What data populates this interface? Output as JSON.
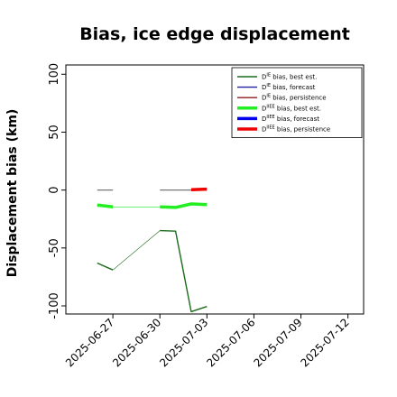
{
  "chart_data": {
    "type": "line",
    "title": "Bias, ice edge displacement",
    "xlabel": "",
    "ylabel": "Displacement bias (km)",
    "xlim": [
      "2025-06-24",
      "2025-07-13"
    ],
    "ylim": [
      -107,
      108
    ],
    "yticks": [
      100,
      50,
      0,
      -50,
      -100
    ],
    "xticks": [
      "2025-06-27",
      "2025-06-30",
      "2025-07-03",
      "2025-07-06",
      "2025-07-09",
      "2025-07-12"
    ],
    "highlight_tick": "2025-07-03",
    "highlight_color": "#228b22",
    "legend_position": "top-right",
    "series": [
      {
        "name": "D^IE bias, best est.",
        "color": "#1a6b1a",
        "width": 1.4,
        "points": [
          [
            "2025-06-26",
            -63
          ],
          [
            "2025-06-27",
            -69
          ]
        ]
      },
      {
        "name": "D^IE bias, best est.",
        "color": "#1a6b1a",
        "width": 0.6,
        "points": [
          [
            "2025-06-27",
            -69
          ],
          [
            "2025-06-30",
            -35
          ]
        ]
      },
      {
        "name": "D^IE bias, best est.",
        "color": "#1a6b1a",
        "width": 1.4,
        "points": [
          [
            "2025-06-30",
            -35
          ],
          [
            "2025-07-01",
            -35.5
          ],
          [
            "2025-07-02",
            -105
          ],
          [
            "2025-07-03",
            -100.5
          ]
        ]
      },
      {
        "name": "D^IE bias, forecast",
        "color": "#1f1fa0",
        "width": 1.2,
        "points": []
      },
      {
        "name": "D^IE bias, persistence",
        "color": "#8b1a1a",
        "width": 1.2,
        "points": []
      },
      {
        "name": "D^IIEE bias, best est.",
        "color": "#22ee22",
        "width": 3.5,
        "points": [
          [
            "2025-06-26",
            -13
          ],
          [
            "2025-06-27",
            -14.5
          ]
        ]
      },
      {
        "name": "D^IIEE bias, best est.",
        "color": "#22ee22",
        "width": 0.6,
        "points": [
          [
            "2025-06-27",
            -14.5
          ],
          [
            "2025-06-30",
            -14.5
          ]
        ]
      },
      {
        "name": "D^IIEE bias, best est.",
        "color": "#22ee22",
        "width": 3.5,
        "points": [
          [
            "2025-06-30",
            -14.5
          ],
          [
            "2025-07-01",
            -15
          ],
          [
            "2025-07-02",
            -12
          ],
          [
            "2025-07-03",
            -12.5
          ]
        ]
      },
      {
        "name": "D^IIEE bias, forecast",
        "color": "#0000ee",
        "width": 3,
        "points": []
      },
      {
        "name": "D^IIEE bias, persistence",
        "color": "#ee0000",
        "width": 3.5,
        "points": [
          [
            "2025-07-02",
            0.3
          ],
          [
            "2025-07-03",
            0.8
          ]
        ]
      },
      {
        "name": "zero reference",
        "color": "#777777",
        "width": 1.2,
        "points": [
          [
            "2025-06-26",
            0
          ],
          [
            "2025-06-27",
            0
          ]
        ]
      },
      {
        "name": "zero reference",
        "color": "#777777",
        "width": 1.2,
        "points": [
          [
            "2025-06-30",
            0
          ],
          [
            "2025-07-02",
            0
          ]
        ]
      }
    ],
    "legend": [
      {
        "label": "D^IE bias, best est.",
        "color": "#1a6b1a",
        "width": 1.4
      },
      {
        "label": "D^IE bias, forecast",
        "color": "#1f1fa0",
        "width": 1.4
      },
      {
        "label": "D^IE bias, persistence",
        "color": "#8b1a1a",
        "width": 1.4
      },
      {
        "label": "D^IIEE bias, best est.",
        "color": "#22ee22",
        "width": 3.5
      },
      {
        "label": "D^IIEE bias, forecast",
        "color": "#0000ee",
        "width": 3.5
      },
      {
        "label": "D^IIEE bias, persistence",
        "color": "#ee0000",
        "width": 3.5
      }
    ]
  }
}
